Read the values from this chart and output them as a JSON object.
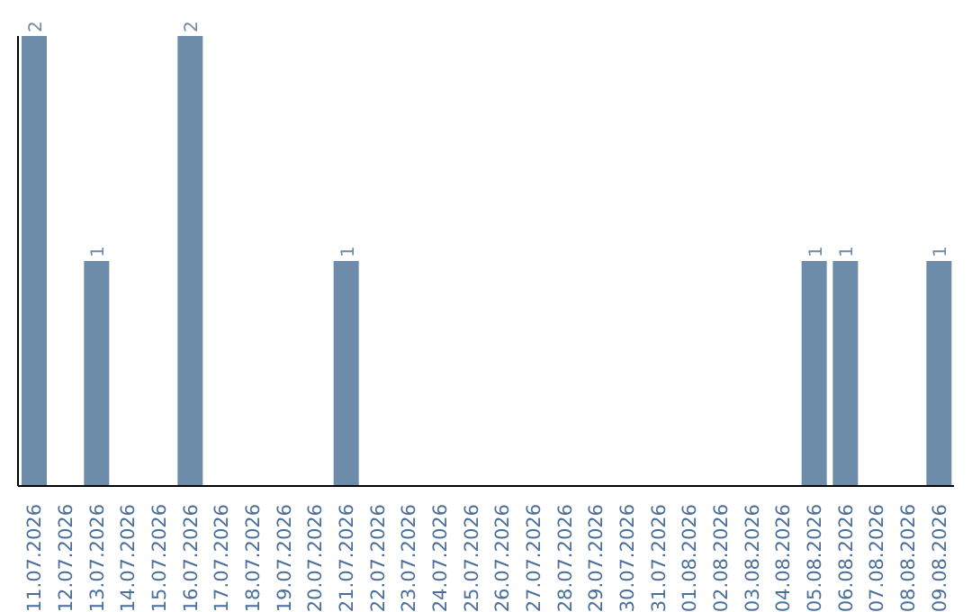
{
  "chart_data": {
    "type": "bar",
    "categories": [
      "11.07.2026",
      "12.07.2026",
      "13.07.2026",
      "14.07.2026",
      "15.07.2026",
      "16.07.2026",
      "17.07.2026",
      "18.07.2026",
      "19.07.2026",
      "20.07.2026",
      "21.07.2026",
      "22.07.2026",
      "23.07.2026",
      "24.07.2026",
      "25.07.2026",
      "26.07.2026",
      "27.07.2026",
      "28.07.2026",
      "29.07.2026",
      "30.07.2026",
      "31.07.2026",
      "01.08.2026",
      "02.08.2026",
      "03.08.2026",
      "04.08.2026",
      "05.08.2026",
      "06.08.2026",
      "07.08.2026",
      "08.08.2026",
      "09.08.2026"
    ],
    "values": [
      2,
      0,
      1,
      0,
      0,
      2,
      0,
      0,
      0,
      0,
      1,
      0,
      0,
      0,
      0,
      0,
      0,
      0,
      0,
      0,
      0,
      0,
      0,
      0,
      0,
      1,
      1,
      0,
      0,
      1
    ],
    "value_labels": [
      "2",
      null,
      "1",
      null,
      null,
      "2",
      null,
      null,
      null,
      null,
      "1",
      null,
      null,
      null,
      null,
      null,
      null,
      null,
      null,
      null,
      null,
      null,
      null,
      null,
      null,
      "1",
      "1",
      null,
      null,
      "1"
    ],
    "color": "#6d8caa",
    "tick_labels": "x",
    "grid": false,
    "legend": false
  }
}
